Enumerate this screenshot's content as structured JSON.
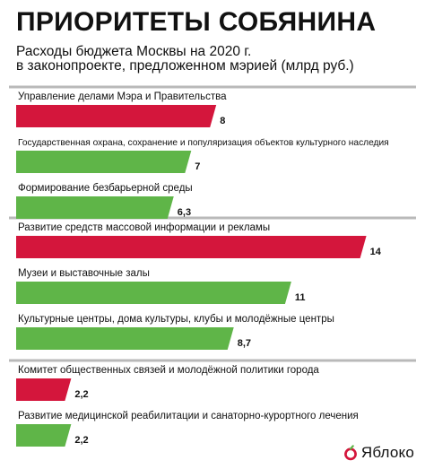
{
  "title": "ПРИОРИТЕТЫ СОБЯНИНА",
  "subtitle_line1": "Расходы бюджета Москвы на 2020 г.",
  "subtitle_line2": "в законопроекте, предложенном мэрией (млрд руб.)",
  "logo_text": "Яблоко",
  "colors": {
    "red": "#d4163c",
    "green": "#5fb548",
    "divider": "#b9b9b9"
  },
  "chart_data": {
    "type": "bar",
    "orientation": "horizontal",
    "unit": "млрд руб.",
    "xlim": [
      0,
      14
    ],
    "groups": [
      {
        "items": [
          {
            "label": "Управление делами Мэра и Правительства",
            "value": 8,
            "value_label": "8",
            "color": "red"
          },
          {
            "label": "Государственная охрана, сохранение и популяризация объектов культурного наследия",
            "value": 7,
            "value_label": "7",
            "color": "green"
          },
          {
            "label": "Формирование безбарьерной среды",
            "value": 6.3,
            "value_label": "6,3",
            "color": "green"
          }
        ]
      },
      {
        "items": [
          {
            "label": "Развитие средств массовой информации и рекламы",
            "value": 14,
            "value_label": "14",
            "color": "red"
          },
          {
            "label": "Музеи и выставочные залы",
            "value": 11,
            "value_label": "11",
            "color": "green"
          },
          {
            "label": "Культурные центры, дома культуры, клубы и молодёжные центры",
            "value": 8.7,
            "value_label": "8,7",
            "color": "green"
          }
        ]
      },
      {
        "items": [
          {
            "label": "Комитет общественных связей и молодёжной политики города",
            "value": 2.2,
            "value_label": "2,2",
            "color": "red"
          },
          {
            "label": "Развитие медицинской реабилитации и санаторно-курортного лечения",
            "value": 2.2,
            "value_label": "2,2",
            "color": "green"
          }
        ]
      }
    ]
  }
}
